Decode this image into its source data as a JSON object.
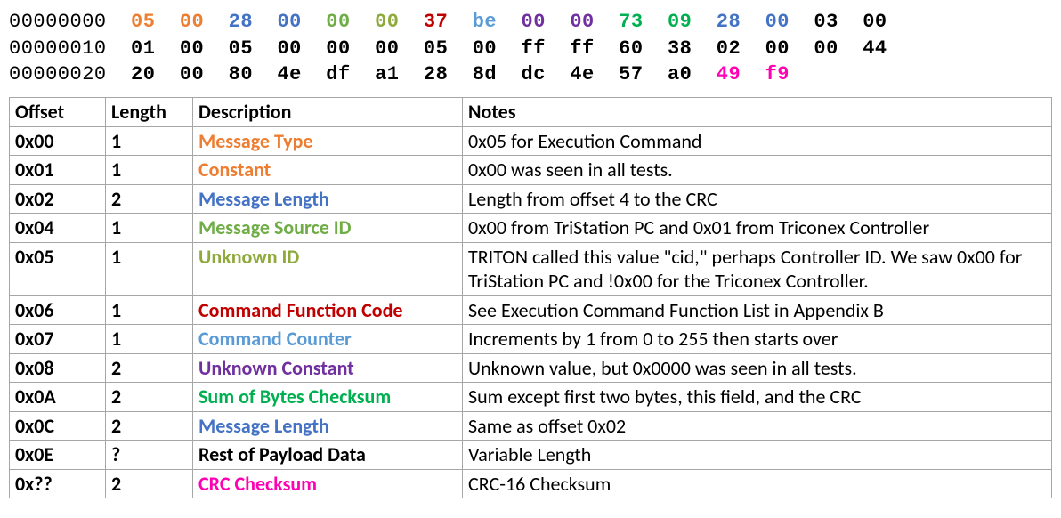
{
  "colors": {
    "orange": "#ed7d31",
    "blue": "#4472c4",
    "green": "#70ad47",
    "olive": "#8faa3c",
    "red": "#c00000",
    "sky": "#5b9bd5",
    "purple": "#7030a0",
    "lime": "#00b050",
    "pink": "#ff00b3",
    "black": "#000000"
  },
  "hex_rows": [
    {
      "addr": "00000000",
      "bytes": [
        {
          "v": "05",
          "c": "orange"
        },
        {
          "v": "00",
          "c": "orange"
        },
        {
          "v": "28",
          "c": "blue"
        },
        {
          "v": "00",
          "c": "blue"
        },
        {
          "v": "00",
          "c": "green"
        },
        {
          "v": "00",
          "c": "olive"
        },
        {
          "v": "37",
          "c": "red"
        },
        {
          "v": "be",
          "c": "sky"
        },
        {
          "v": "00",
          "c": "purple"
        },
        {
          "v": "00",
          "c": "purple"
        },
        {
          "v": "73",
          "c": "lime"
        },
        {
          "v": "09",
          "c": "lime"
        },
        {
          "v": "28",
          "c": "blue"
        },
        {
          "v": "00",
          "c": "blue"
        },
        {
          "v": "03",
          "c": "black"
        },
        {
          "v": "00",
          "c": "black"
        }
      ]
    },
    {
      "addr": "00000010",
      "bytes": [
        {
          "v": "01",
          "c": "black"
        },
        {
          "v": "00",
          "c": "black"
        },
        {
          "v": "05",
          "c": "black"
        },
        {
          "v": "00",
          "c": "black"
        },
        {
          "v": "00",
          "c": "black"
        },
        {
          "v": "00",
          "c": "black"
        },
        {
          "v": "05",
          "c": "black"
        },
        {
          "v": "00",
          "c": "black"
        },
        {
          "v": "ff",
          "c": "black"
        },
        {
          "v": "ff",
          "c": "black"
        },
        {
          "v": "60",
          "c": "black"
        },
        {
          "v": "38",
          "c": "black"
        },
        {
          "v": "02",
          "c": "black"
        },
        {
          "v": "00",
          "c": "black"
        },
        {
          "v": "00",
          "c": "black"
        },
        {
          "v": "44",
          "c": "black"
        }
      ]
    },
    {
      "addr": "00000020",
      "bytes": [
        {
          "v": "20",
          "c": "black"
        },
        {
          "v": "00",
          "c": "black"
        },
        {
          "v": "80",
          "c": "black"
        },
        {
          "v": "4e",
          "c": "black"
        },
        {
          "v": "df",
          "c": "black"
        },
        {
          "v": "a1",
          "c": "black"
        },
        {
          "v": "28",
          "c": "black"
        },
        {
          "v": "8d",
          "c": "black"
        },
        {
          "v": "dc",
          "c": "black"
        },
        {
          "v": "4e",
          "c": "black"
        },
        {
          "v": "57",
          "c": "black"
        },
        {
          "v": "a0",
          "c": "black"
        },
        {
          "v": "49",
          "c": "pink"
        },
        {
          "v": "f9",
          "c": "pink"
        }
      ]
    }
  ],
  "table": {
    "headers": {
      "offset": "Offset",
      "length": "Length",
      "desc": "Description",
      "notes": "Notes"
    },
    "rows": [
      {
        "offset": "0x00",
        "length": "1",
        "desc": "Message Type",
        "desc_c": "orange",
        "notes": "0x05 for Execution Command"
      },
      {
        "offset": "0x01",
        "length": "1",
        "desc": "Constant",
        "desc_c": "orange",
        "notes": "0x00 was seen in all tests."
      },
      {
        "offset": "0x02",
        "length": "2",
        "desc": "Message Length",
        "desc_c": "blue",
        "notes": "Length from offset 4 to the CRC"
      },
      {
        "offset": "0x04",
        "length": "1",
        "desc": "Message Source ID",
        "desc_c": "green",
        "notes": "0x00 from TriStation PC and 0x01 from Triconex Controller"
      },
      {
        "offset": "0x05",
        "length": "1",
        "desc": "Unknown ID",
        "desc_c": "olive",
        "notes": "TRITON called this value \"cid,\" perhaps Controller ID. We saw 0x00 for TriStation PC and !0x00 for the Triconex Controller."
      },
      {
        "offset": "0x06",
        "length": "1",
        "desc": "Command Function Code",
        "desc_c": "red",
        "notes": "See Execution Command Function List in Appendix B"
      },
      {
        "offset": "0x07",
        "length": "1",
        "desc": "Command Counter",
        "desc_c": "sky",
        "notes": "Increments by 1 from 0 to 255 then starts over"
      },
      {
        "offset": "0x08",
        "length": "2",
        "desc": "Unknown Constant",
        "desc_c": "purple",
        "notes": "Unknown value, but 0x0000 was seen in all tests."
      },
      {
        "offset": "0x0A",
        "length": "2",
        "desc": "Sum of Bytes Checksum",
        "desc_c": "lime",
        "notes": "Sum except first two bytes, this field, and the CRC"
      },
      {
        "offset": "0x0C",
        "length": "2",
        "desc": "Message Length",
        "desc_c": "blue",
        "notes": "Same as offset 0x02"
      },
      {
        "offset": "0x0E",
        "length": "?",
        "desc": "Rest of Payload Data",
        "desc_c": "black",
        "notes": "Variable Length"
      },
      {
        "offset": "0x??",
        "length": "2",
        "desc": "CRC Checksum",
        "desc_c": "pink",
        "notes": "CRC-16 Checksum"
      }
    ]
  }
}
